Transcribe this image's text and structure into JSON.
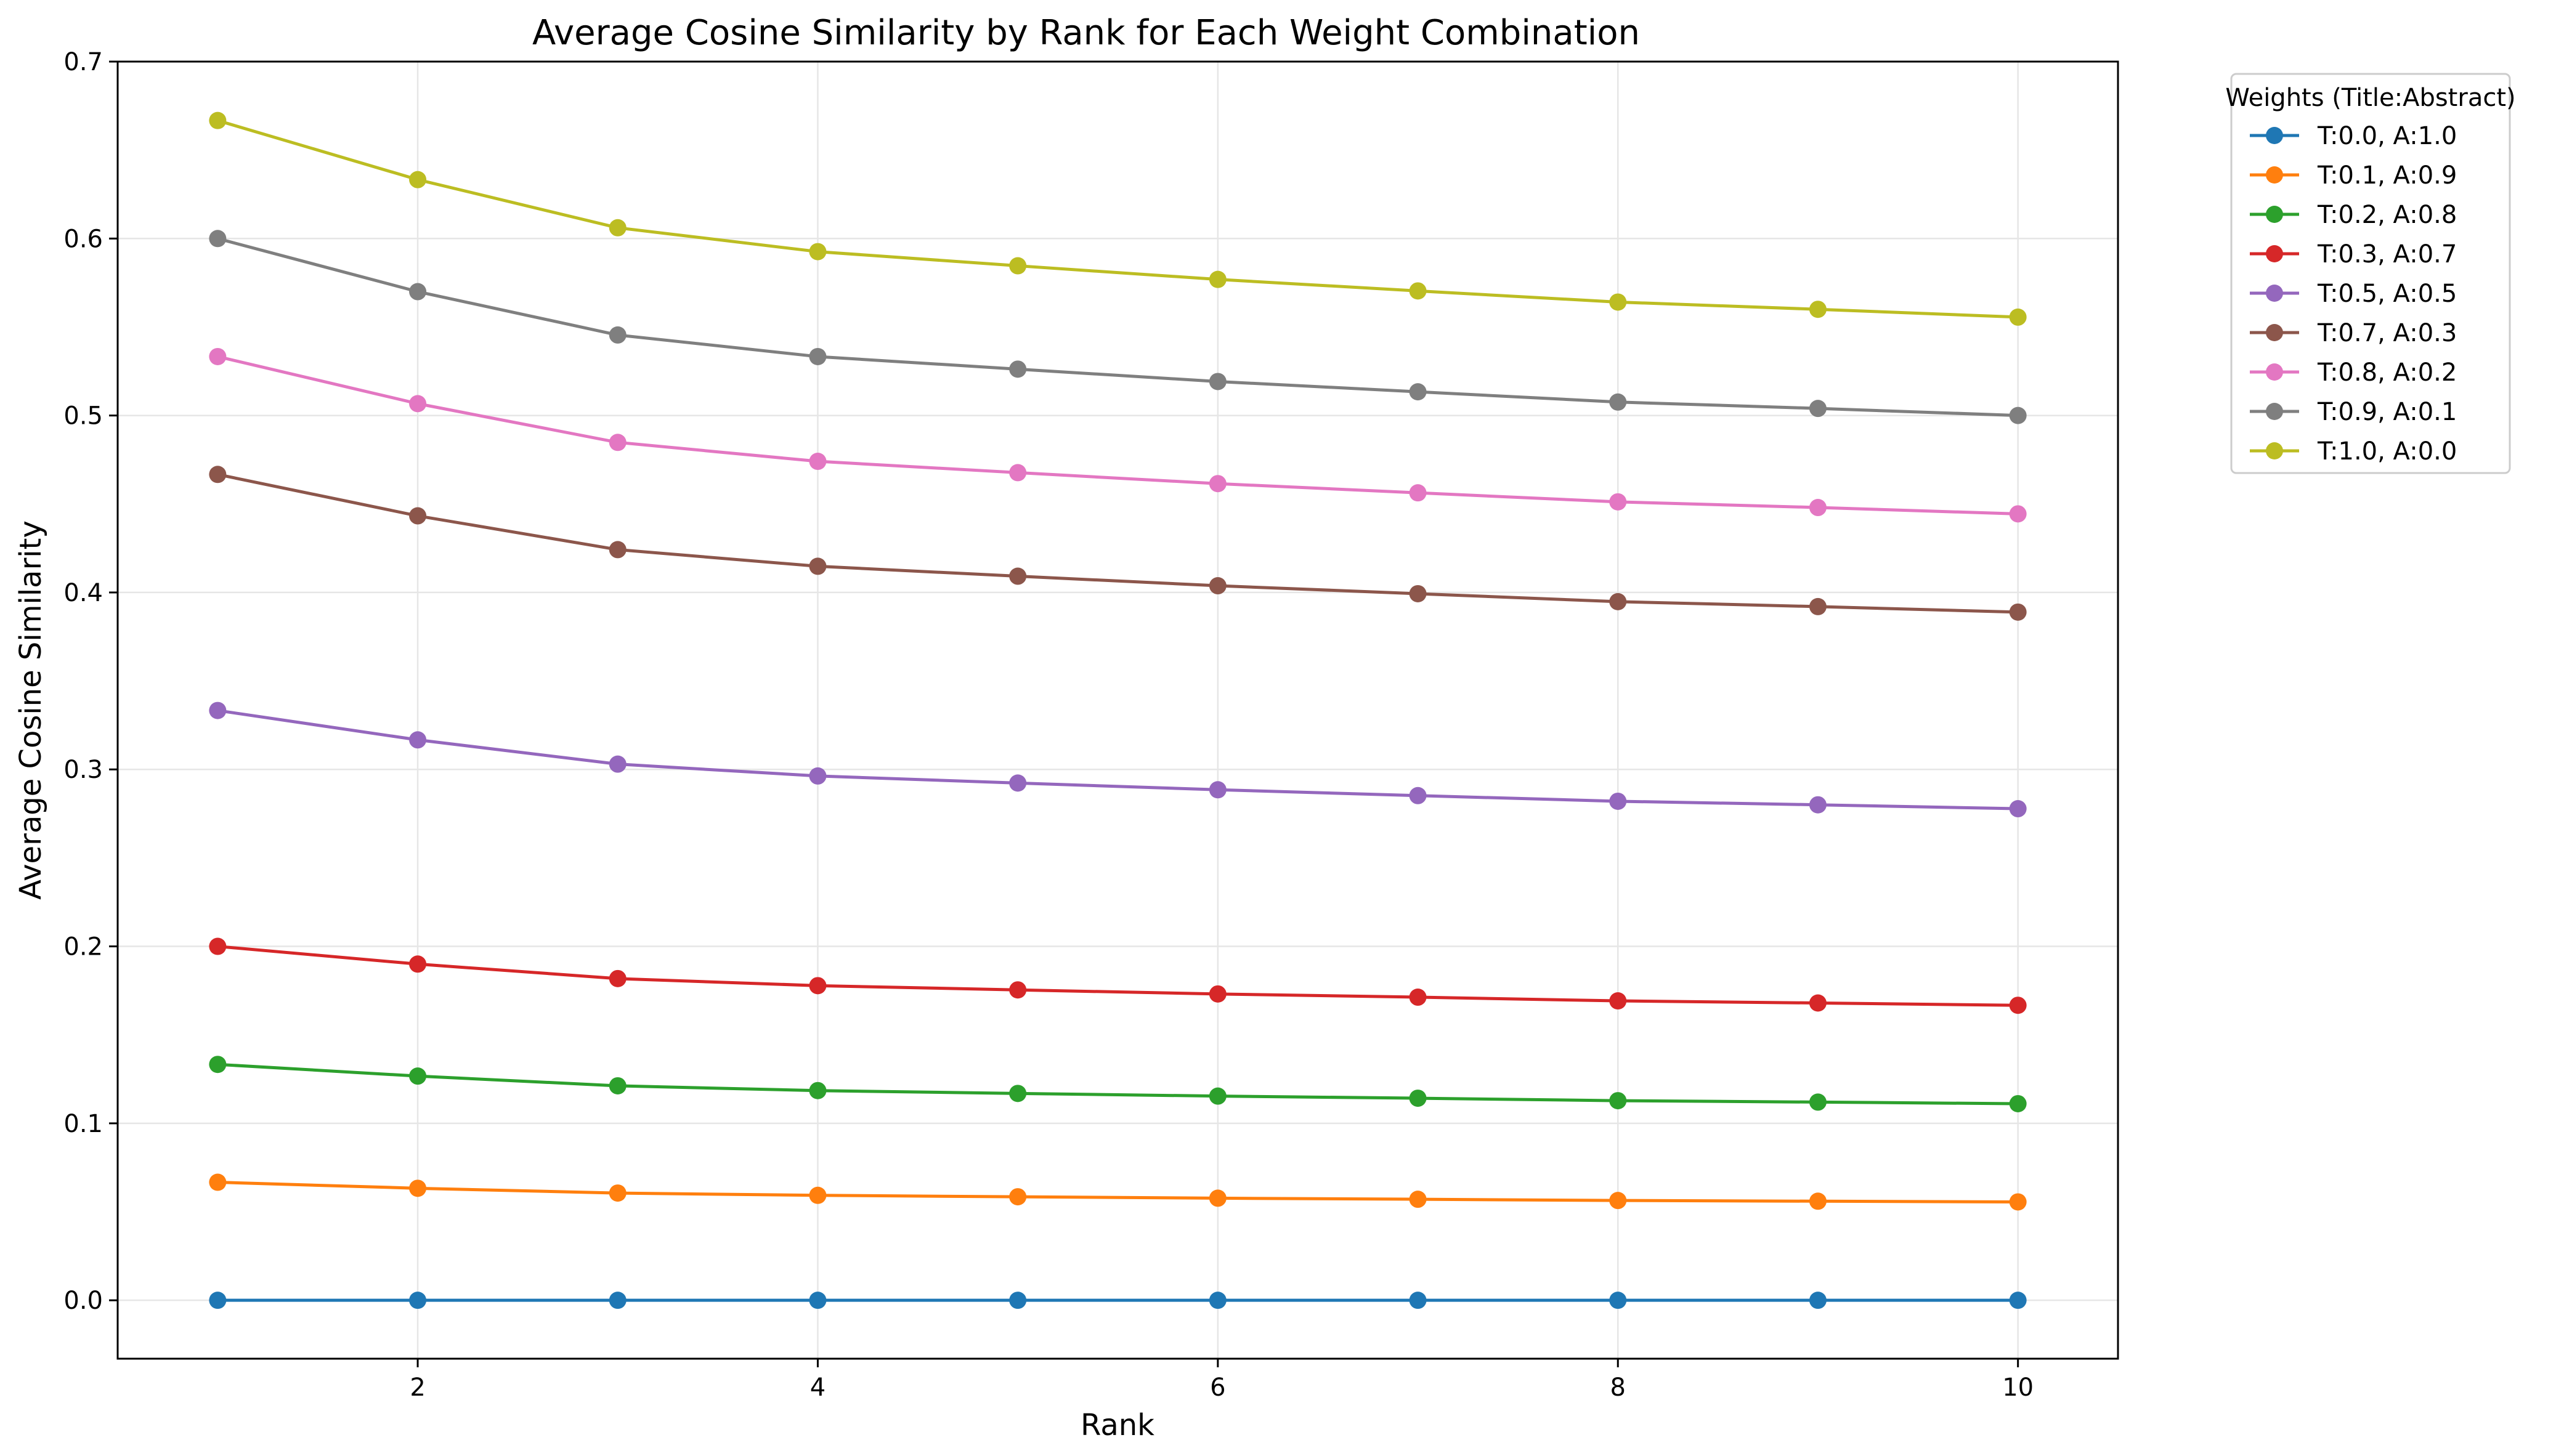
{
  "chart_data": {
    "type": "line",
    "title": "Average Cosine Similarity by Rank for Each Weight Combination",
    "xlabel": "Rank",
    "ylabel": "Average Cosine Similarity",
    "xlim": [
      0.5,
      10.5
    ],
    "ylim": [
      -0.033,
      0.7
    ],
    "x_ticks": [
      2,
      4,
      6,
      8,
      10
    ],
    "y_ticks": [
      0.0,
      0.1,
      0.2,
      0.3,
      0.4,
      0.5,
      0.6,
      0.7
    ],
    "y_tick_labels": [
      "0.0",
      "0.1",
      "0.2",
      "0.3",
      "0.4",
      "0.5",
      "0.6",
      "0.7"
    ],
    "grid": true,
    "marker": "circle",
    "legend_title": "Weights (Title:Abstract)",
    "legend_position": "outside-top-right",
    "x": [
      1,
      2,
      3,
      4,
      5,
      6,
      7,
      8,
      9,
      10
    ],
    "series": [
      {
        "name": "T:0.0, A:1.0",
        "color": "#1f77b4",
        "values": [
          0.0,
          0.0,
          0.0,
          0.0,
          0.0,
          0.0,
          0.0,
          0.0,
          0.0,
          0.0
        ]
      },
      {
        "name": "T:0.1, A:0.9",
        "color": "#ff7f0e",
        "values": [
          0.0667,
          0.0633,
          0.0606,
          0.0593,
          0.0585,
          0.0577,
          0.0571,
          0.0564,
          0.056,
          0.0556
        ]
      },
      {
        "name": "T:0.2, A:0.8",
        "color": "#2ca02c",
        "values": [
          0.1333,
          0.1267,
          0.1212,
          0.1185,
          0.1169,
          0.1154,
          0.1142,
          0.1128,
          0.112,
          0.1111
        ]
      },
      {
        "name": "T:0.3, A:0.7",
        "color": "#d62728",
        "values": [
          0.2,
          0.19,
          0.1818,
          0.1778,
          0.1754,
          0.1731,
          0.1713,
          0.1692,
          0.168,
          0.1667
        ]
      },
      {
        "name": "T:0.5, A:0.5",
        "color": "#9467bd",
        "values": [
          0.3333,
          0.3167,
          0.303,
          0.2963,
          0.2923,
          0.2885,
          0.2852,
          0.282,
          0.28,
          0.2778
        ]
      },
      {
        "name": "T:0.7, A:0.3",
        "color": "#8c564b",
        "values": [
          0.4667,
          0.4433,
          0.4242,
          0.4148,
          0.4092,
          0.4038,
          0.3993,
          0.3948,
          0.392,
          0.3889
        ]
      },
      {
        "name": "T:0.8, A:0.2",
        "color": "#e377c2",
        "values": [
          0.5333,
          0.5067,
          0.4848,
          0.4741,
          0.4677,
          0.4615,
          0.4563,
          0.4512,
          0.448,
          0.4444
        ]
      },
      {
        "name": "T:0.9, A:0.1",
        "color": "#7f7f7f",
        "values": [
          0.6,
          0.57,
          0.5455,
          0.5333,
          0.5262,
          0.5192,
          0.5134,
          0.5076,
          0.504,
          0.5
        ]
      },
      {
        "name": "T:1.0, A:0.0",
        "color": "#bcbd22",
        "values": [
          0.6667,
          0.6333,
          0.6061,
          0.5926,
          0.5846,
          0.5769,
          0.5704,
          0.5641,
          0.56,
          0.5556
        ]
      }
    ]
  }
}
